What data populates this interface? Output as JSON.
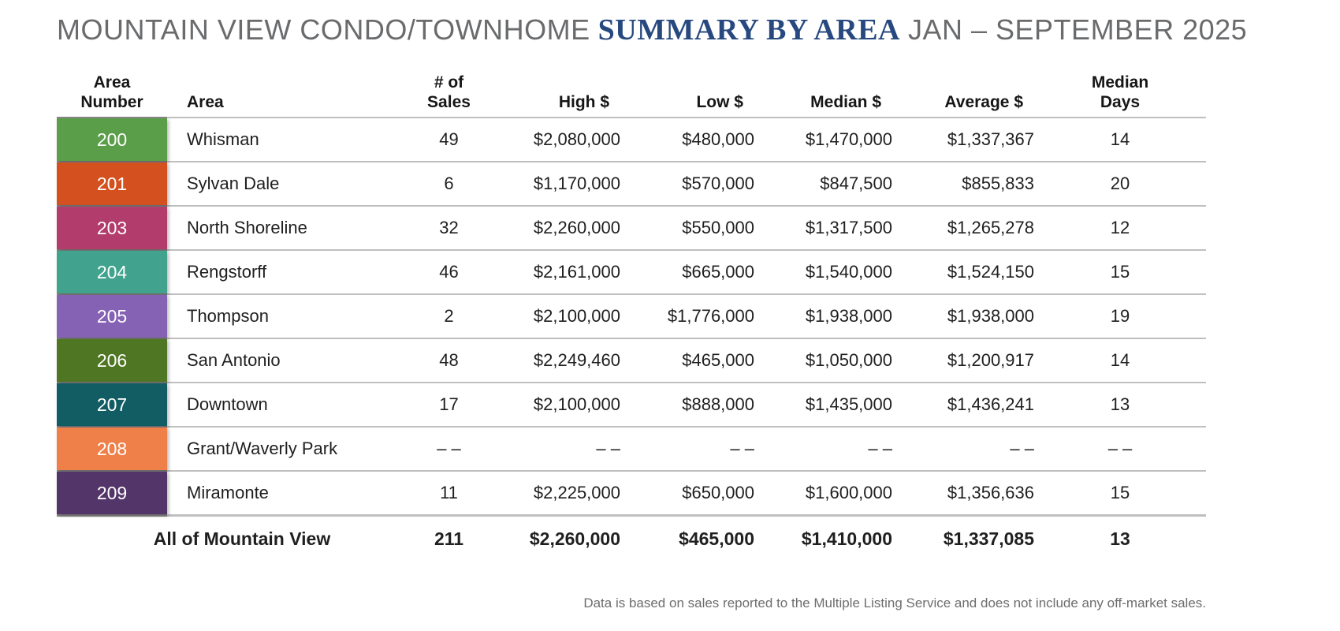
{
  "title": {
    "part1": "MOUNTAIN VIEW CONDO/TOWNHOME",
    "part2": "SUMMARY BY AREA",
    "part3": "JAN – SEPTEMBER 2025"
  },
  "table": {
    "headers": [
      "Area\nNumber",
      "Area",
      "# of\nSales",
      "High $",
      "Low $",
      "Median $",
      "Average $",
      "Median\nDays"
    ]
  },
  "chart_data": {
    "type": "table",
    "title": "MOUNTAIN VIEW CONDO/TOWNHOME SUMMARY BY AREA JAN – SEPTEMBER 2025",
    "columns": [
      "Area Number",
      "Area",
      "# of Sales",
      "High $",
      "Low $",
      "Median $",
      "Average $",
      "Median Days"
    ],
    "rows": [
      {
        "area_number": "200",
        "color": "#5a9e4a",
        "area": "Whisman",
        "sales": "49",
        "high": "$2,080,000",
        "low": "$480,000",
        "median": "$1,470,000",
        "average": "$1,337,367",
        "median_days": "14"
      },
      {
        "area_number": "201",
        "color": "#d4501e",
        "area": "Sylvan Dale",
        "sales": "6",
        "high": "$1,170,000",
        "low": "$570,000",
        "median": "$847,500",
        "average": "$855,833",
        "median_days": "20"
      },
      {
        "area_number": "203",
        "color": "#b23c6b",
        "area": "North Shoreline",
        "sales": "32",
        "high": "$2,260,000",
        "low": "$550,000",
        "median": "$1,317,500",
        "average": "$1,265,278",
        "median_days": "12"
      },
      {
        "area_number": "204",
        "color": "#41a28e",
        "area": "Rengstorff",
        "sales": "46",
        "high": "$2,161,000",
        "low": "$665,000",
        "median": "$1,540,000",
        "average": "$1,524,150",
        "median_days": "15"
      },
      {
        "area_number": "205",
        "color": "#8562b4",
        "area": "Thompson",
        "sales": "2",
        "high": "$2,100,000",
        "low": "$1,776,000",
        "median": "$1,938,000",
        "average": "$1,938,000",
        "median_days": "19"
      },
      {
        "area_number": "206",
        "color": "#4f7622",
        "area": "San Antonio",
        "sales": "48",
        "high": "$2,249,460",
        "low": "$465,000",
        "median": "$1,050,000",
        "average": "$1,200,917",
        "median_days": "14"
      },
      {
        "area_number": "207",
        "color": "#115d63",
        "area": "Downtown",
        "sales": "17",
        "high": "$2,100,000",
        "low": "$888,000",
        "median": "$1,435,000",
        "average": "$1,436,241",
        "median_days": "13"
      },
      {
        "area_number": "208",
        "color": "#f08049",
        "area": "Grant/Waverly Park",
        "sales": "– –",
        "high": "– –",
        "low": "– –",
        "median": "– –",
        "average": "– –",
        "median_days": "– –"
      },
      {
        "area_number": "209",
        "color": "#533569",
        "area": "Miramonte",
        "sales": "11",
        "high": "$2,225,000",
        "low": "$650,000",
        "median": "$1,600,000",
        "average": "$1,356,636",
        "median_days": "15"
      }
    ],
    "total_row": {
      "label": "All of Mountain View",
      "sales": "211",
      "high": "$2,260,000",
      "low": "$465,000",
      "median": "$1,410,000",
      "average": "$1,337,085",
      "median_days": "13"
    }
  },
  "footnote": "Data is based on sales reported to the Multiple Listing Service and does not include any off-market sales."
}
